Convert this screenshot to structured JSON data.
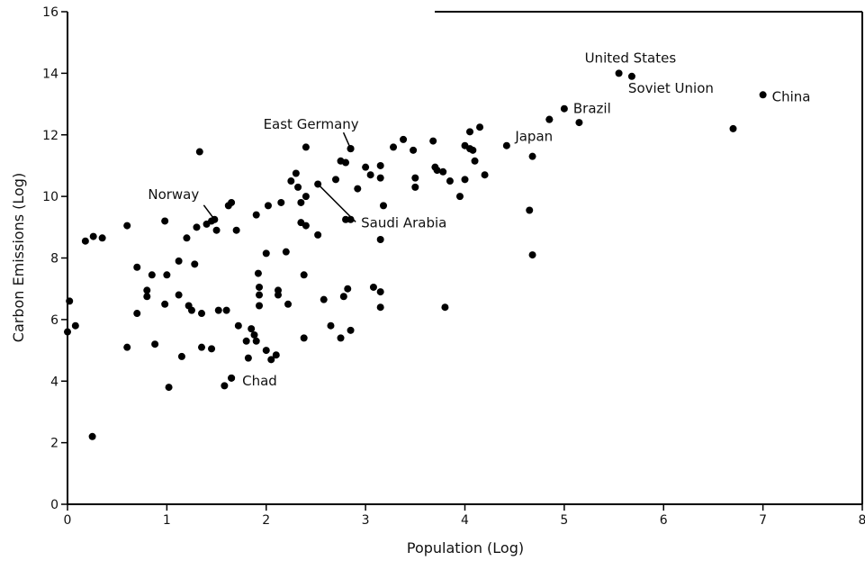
{
  "chart_data": {
    "type": "scatter",
    "title": "",
    "xlabel": "Population (Log)",
    "ylabel": "Carbon Emissions (Log)",
    "xlim": [
      0,
      8
    ],
    "ylim": [
      0,
      16
    ],
    "x_ticks": [
      "0",
      "1",
      "2",
      "3",
      "4",
      "5",
      "6",
      "7",
      "8"
    ],
    "y_ticks": [
      "0",
      "2",
      "4",
      "6",
      "8",
      "10",
      "12",
      "14",
      "16"
    ],
    "grid": false,
    "points": [
      [
        0.02,
        6.6
      ],
      [
        0.0,
        5.6
      ],
      [
        0.08,
        5.8
      ],
      [
        0.18,
        8.55
      ],
      [
        0.26,
        8.7
      ],
      [
        0.35,
        8.65
      ],
      [
        0.25,
        2.2
      ],
      [
        0.6,
        9.05
      ],
      [
        0.6,
        5.1
      ],
      [
        0.7,
        7.7
      ],
      [
        0.7,
        6.2
      ],
      [
        0.8,
        6.95
      ],
      [
        0.8,
        6.75
      ],
      [
        0.85,
        7.45
      ],
      [
        0.88,
        5.2
      ],
      [
        0.98,
        9.2
      ],
      [
        0.98,
        6.5
      ],
      [
        1.0,
        7.45
      ],
      [
        1.02,
        3.8
      ],
      [
        1.12,
        7.9
      ],
      [
        1.12,
        6.8
      ],
      [
        1.15,
        4.8
      ],
      [
        1.2,
        8.65
      ],
      [
        1.22,
        6.45
      ],
      [
        1.25,
        6.3
      ],
      [
        1.28,
        7.8
      ],
      [
        1.3,
        9.0
      ],
      [
        1.33,
        11.45
      ],
      [
        1.35,
        6.2
      ],
      [
        1.35,
        5.1
      ],
      [
        1.4,
        9.1
      ],
      [
        1.45,
        5.05
      ],
      [
        1.45,
        9.2
      ],
      [
        1.5,
        8.9
      ],
      [
        1.52,
        6.3
      ],
      [
        1.6,
        6.3
      ],
      [
        1.58,
        3.85
      ],
      [
        1.62,
        9.7
      ],
      [
        1.65,
        9.8
      ],
      [
        1.65,
        4.1
      ],
      [
        1.7,
        8.9
      ],
      [
        1.72,
        5.8
      ],
      [
        1.8,
        5.3
      ],
      [
        1.82,
        4.75
      ],
      [
        1.85,
        5.7
      ],
      [
        1.88,
        5.5
      ],
      [
        1.9,
        9.4
      ],
      [
        1.92,
        7.5
      ],
      [
        1.93,
        7.05
      ],
      [
        1.93,
        6.8
      ],
      [
        1.93,
        6.45
      ],
      [
        1.9,
        5.3
      ],
      [
        2.0,
        8.15
      ],
      [
        2.0,
        5.0
      ],
      [
        2.02,
        9.7
      ],
      [
        2.05,
        4.7
      ],
      [
        2.1,
        4.85
      ],
      [
        2.12,
        6.95
      ],
      [
        2.12,
        6.8
      ],
      [
        2.15,
        9.8
      ],
      [
        2.2,
        8.2
      ],
      [
        2.22,
        6.5
      ],
      [
        2.25,
        10.5
      ],
      [
        2.3,
        10.75
      ],
      [
        2.32,
        10.3
      ],
      [
        2.35,
        9.8
      ],
      [
        2.35,
        9.15
      ],
      [
        2.4,
        10.0
      ],
      [
        2.4,
        9.05
      ],
      [
        2.38,
        7.45
      ],
      [
        2.38,
        5.4
      ],
      [
        2.4,
        11.6
      ],
      [
        2.52,
        8.75
      ],
      [
        2.58,
        6.65
      ],
      [
        2.65,
        5.8
      ],
      [
        2.7,
        10.55
      ],
      [
        2.75,
        11.15
      ],
      [
        2.75,
        5.4
      ],
      [
        2.78,
        6.75
      ],
      [
        2.8,
        11.1
      ],
      [
        2.8,
        9.25
      ],
      [
        2.82,
        7.0
      ],
      [
        2.85,
        11.55
      ],
      [
        2.85,
        9.25
      ],
      [
        2.85,
        5.65
      ],
      [
        2.92,
        10.25
      ],
      [
        3.0,
        10.95
      ],
      [
        3.05,
        10.7
      ],
      [
        3.08,
        7.05
      ],
      [
        3.15,
        11.0
      ],
      [
        3.15,
        10.6
      ],
      [
        3.15,
        8.6
      ],
      [
        3.15,
        6.9
      ],
      [
        3.15,
        6.4
      ],
      [
        3.18,
        9.7
      ],
      [
        3.28,
        11.6
      ],
      [
        3.38,
        11.85
      ],
      [
        3.48,
        11.5
      ],
      [
        3.5,
        10.6
      ],
      [
        3.5,
        10.3
      ],
      [
        3.68,
        11.8
      ],
      [
        3.7,
        10.95
      ],
      [
        3.72,
        10.85
      ],
      [
        3.78,
        10.8
      ],
      [
        3.8,
        6.4
      ],
      [
        3.85,
        10.5
      ],
      [
        3.95,
        10.0
      ],
      [
        4.0,
        11.65
      ],
      [
        4.0,
        10.55
      ],
      [
        4.05,
        11.55
      ],
      [
        4.05,
        12.1
      ],
      [
        4.08,
        11.5
      ],
      [
        4.1,
        11.15
      ],
      [
        4.15,
        12.25
      ],
      [
        4.2,
        10.7
      ],
      [
        4.42,
        11.65
      ],
      [
        4.65,
        9.55
      ],
      [
        4.68,
        11.3
      ],
      [
        4.68,
        8.1
      ],
      [
        4.85,
        12.5
      ],
      [
        5.15,
        12.4
      ],
      [
        6.7,
        12.2
      ]
    ],
    "labeled_points": [
      {
        "label": "United States",
        "x": 5.55,
        "y": 14.0
      },
      {
        "label": "Soviet Union",
        "x": 5.68,
        "y": 13.9
      },
      {
        "label": "China",
        "x": 7.0,
        "y": 13.3
      },
      {
        "label": "Brazil",
        "x": 5.0,
        "y": 12.85
      },
      {
        "label": "Japan",
        "x": 4.85,
        "y": 12.5
      },
      {
        "label": "East Germany",
        "x": 2.85,
        "y": 11.55
      },
      {
        "label": "Norway",
        "x": 1.48,
        "y": 9.25
      },
      {
        "label": "Saudi Arabia",
        "x": 2.52,
        "y": 10.4
      },
      {
        "label": "Chad",
        "x": 1.65,
        "y": 4.1
      }
    ]
  }
}
